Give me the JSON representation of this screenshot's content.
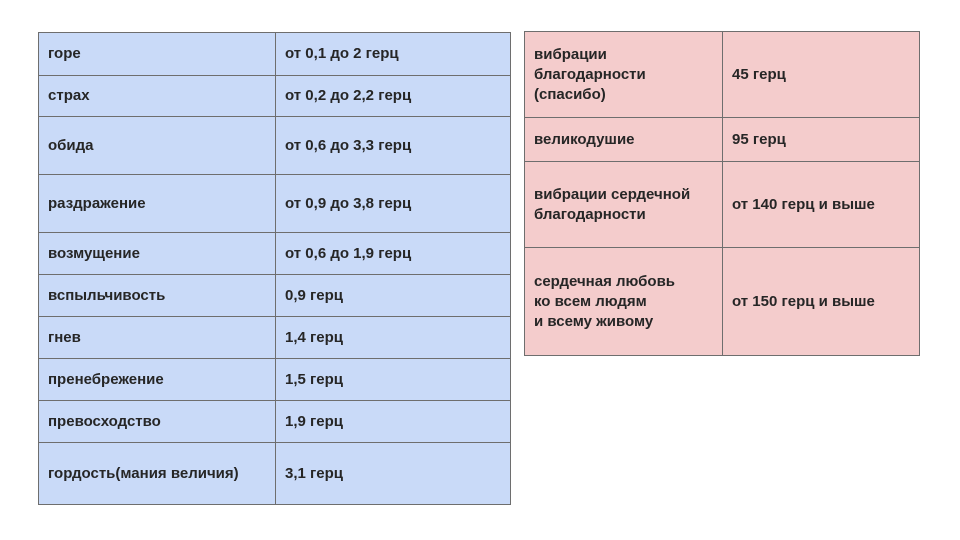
{
  "emotions_table": {
    "rows": [
      {
        "name": "горе",
        "value": "от 0,1 до 2 герц"
      },
      {
        "name": "страх",
        "value": "от 0,2 до 2,2 герц"
      },
      {
        "name": "обида",
        "value": "от 0,6 до 3,3 герц"
      },
      {
        "name": "раздражение",
        "value": "от 0,9 до 3,8 герц"
      },
      {
        "name": "возмущение",
        "value": "от 0,6 до 1,9 герц"
      },
      {
        "name": "вспыльчивость",
        "value": "0,9 герц"
      },
      {
        "name": "гнев",
        "value": "1,4 герц"
      },
      {
        "name": "пренебрежение",
        "value": "1,5 герц"
      },
      {
        "name": "превосходство",
        "value": "1,9 герц"
      },
      {
        "name": "гордость(мания величия)",
        "value": "3,1 герц"
      }
    ]
  },
  "positive_table": {
    "rows": [
      {
        "name": "вибрации\nблагодарности\n(спасибо)",
        "value": "45 герц"
      },
      {
        "name": "великодушие",
        "value": "95 герц"
      },
      {
        "name": "вибрации сердечной\nблагодарности",
        "value": "от 140 герц и выше"
      },
      {
        "name": "сердечная любовь\nко всем людям\nи всему живому",
        "value": "от 150 герц и выше"
      }
    ]
  },
  "colors": {
    "left_table_bg": "#c9daf8",
    "right_table_bg": "#f4cccc",
    "border": "#6e6e6e",
    "text": "#262626"
  }
}
